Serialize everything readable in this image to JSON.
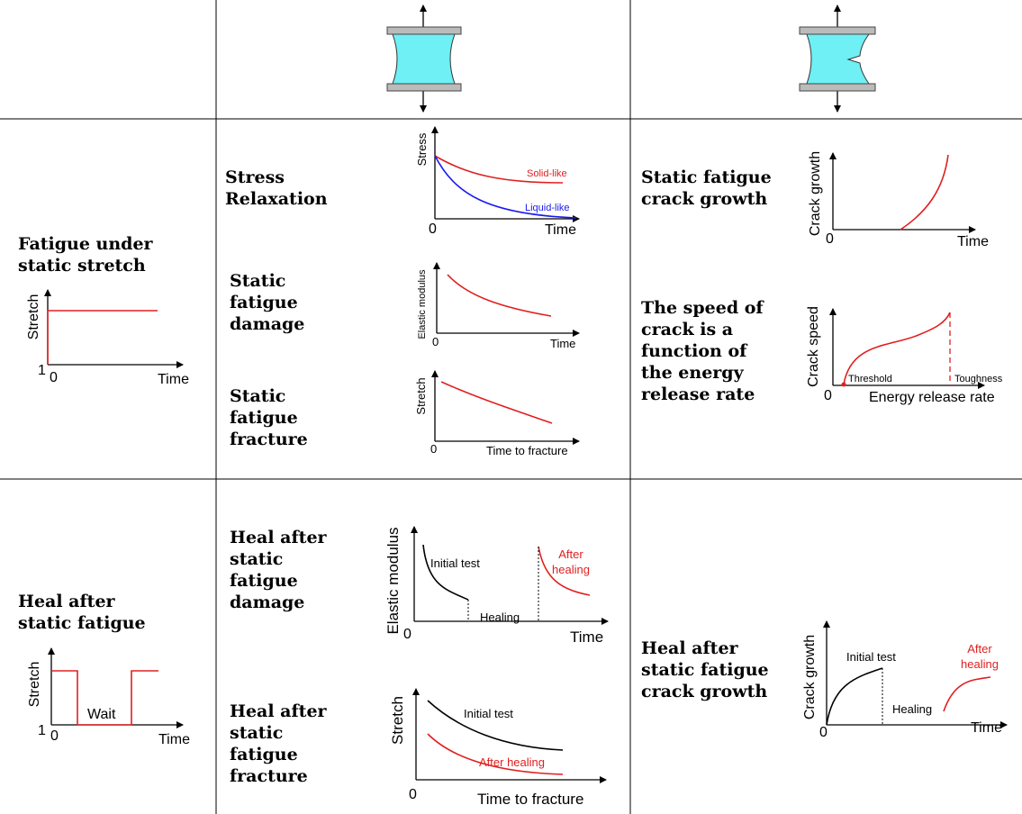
{
  "row1": {
    "loading": {
      "title": [
        "Fatigue under",
        "static stretch"
      ],
      "plot": {
        "y_label": "Stretch",
        "y_start": "1",
        "origin": "0",
        "x_label": "Time"
      }
    },
    "material": [
      {
        "title": [
          "Stress",
          "Relaxation"
        ],
        "plot": {
          "y_label": "Stress",
          "origin": "0",
          "x_label": "Time",
          "curves": [
            "Solid-like",
            "Liquid-like"
          ]
        }
      },
      {
        "title": [
          "Static",
          "fatigue",
          "damage"
        ],
        "plot": {
          "y_label": "Elastic modulus",
          "origin": "0",
          "x_label": "Time"
        }
      },
      {
        "title": [
          "Static",
          "fatigue",
          "fracture"
        ],
        "plot": {
          "y_label": "Stretch",
          "origin": "0",
          "x_label": "Time to fracture"
        }
      }
    ],
    "crack": [
      {
        "title": [
          "Static fatigue",
          "crack growth"
        ],
        "plot": {
          "y_label": "Crack growth",
          "origin": "0",
          "x_label": "Time"
        }
      },
      {
        "title": [
          "The speed of",
          "crack is a",
          "function of",
          "the energy",
          "release rate"
        ],
        "plot": {
          "y_label": "Crack speed",
          "origin": "0",
          "x_label": "Energy release rate",
          "markers": [
            "Threshold",
            "Toughness"
          ]
        }
      }
    ]
  },
  "row2": {
    "loading": {
      "title": [
        "Heal after",
        "static fatigue"
      ],
      "plot": {
        "y_label": "Stretch",
        "y_start": "1",
        "origin": "0",
        "x_label": "Time",
        "annotation": "Wait"
      }
    },
    "material": [
      {
        "title": [
          "Heal after",
          "static",
          "fatigue",
          "damage"
        ],
        "plot": {
          "y_label": "Elastic modulus",
          "origin": "0",
          "x_label": "Time",
          "annotations": [
            "Initial test",
            "Healing",
            "After",
            "healing"
          ]
        }
      },
      {
        "title": [
          "Heal after",
          "static",
          "fatigue",
          "fracture"
        ],
        "plot": {
          "y_label": "Stretch",
          "origin": "0",
          "x_label": "Time to fracture",
          "annotations": [
            "Initial test",
            "After healing"
          ]
        }
      }
    ],
    "crack": [
      {
        "title": [
          "Heal after",
          "static fatigue",
          "crack growth"
        ],
        "plot": {
          "y_label": "Crack growth",
          "origin": "0",
          "x_label": "Time",
          "annotations": [
            "Initial test",
            "Healing",
            "After",
            "healing"
          ]
        }
      }
    ]
  }
}
